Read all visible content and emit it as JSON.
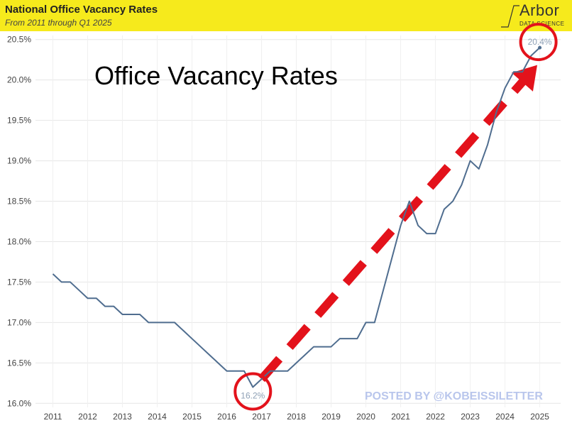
{
  "header": {
    "title": "National Office Vacancy Rates",
    "subtitle": "From 2011 through Q1 2025"
  },
  "logo": {
    "brand": "Arbor",
    "tagline": "DATA SCIENCE"
  },
  "overlay_title": "Office Vacancy Rates",
  "watermark": "POSTED BY @KOBEISSILETTER",
  "colors": {
    "header_bg": "#f6ea1c",
    "line": "#4f6d8f",
    "highlight": "#e3121b",
    "watermark": "#b9c6ec"
  },
  "chart_data": {
    "type": "line",
    "title": "National Office Vacancy Rates",
    "subtitle": "From 2011 through Q1 2025",
    "xlabel": "",
    "ylabel": "",
    "xlim": [
      2010.5,
      2025.6
    ],
    "ylim": [
      15.95,
      20.55
    ],
    "y_ticks": [
      16.0,
      16.5,
      17.0,
      17.5,
      18.0,
      18.5,
      19.0,
      19.5,
      20.0,
      20.5
    ],
    "y_tick_labels": [
      "16.0%",
      "16.5%",
      "17.0%",
      "17.5%",
      "18.0%",
      "18.5%",
      "19.0%",
      "19.5%",
      "20.0%",
      "20.5%"
    ],
    "x_ticks": [
      2011,
      2012,
      2013,
      2014,
      2015,
      2016,
      2017,
      2018,
      2019,
      2020,
      2021,
      2022,
      2023,
      2024,
      2025
    ],
    "x_tick_labels": [
      "2011",
      "2012",
      "2013",
      "2014",
      "2015",
      "2016",
      "2017",
      "2018",
      "2019",
      "2020",
      "2021",
      "2022",
      "2023",
      "2024",
      "2025"
    ],
    "grid": true,
    "x": [
      2011.0,
      2011.25,
      2011.5,
      2011.75,
      2012.0,
      2012.25,
      2012.5,
      2012.75,
      2013.0,
      2013.25,
      2013.5,
      2013.75,
      2014.0,
      2014.25,
      2014.5,
      2014.75,
      2015.0,
      2015.25,
      2015.5,
      2015.75,
      2016.0,
      2016.25,
      2016.5,
      2016.75,
      2017.0,
      2017.25,
      2017.5,
      2017.75,
      2018.0,
      2018.25,
      2018.5,
      2018.75,
      2019.0,
      2019.25,
      2019.5,
      2019.75,
      2020.0,
      2020.25,
      2020.5,
      2020.75,
      2021.0,
      2021.25,
      2021.5,
      2021.75,
      2022.0,
      2022.25,
      2022.5,
      2022.75,
      2023.0,
      2023.25,
      2023.5,
      2023.75,
      2024.0,
      2024.25,
      2024.5,
      2024.75,
      2025.0
    ],
    "values": [
      17.6,
      17.5,
      17.5,
      17.4,
      17.3,
      17.3,
      17.2,
      17.2,
      17.1,
      17.1,
      17.1,
      17.0,
      17.0,
      17.0,
      17.0,
      16.9,
      16.8,
      16.7,
      16.6,
      16.5,
      16.4,
      16.4,
      16.4,
      16.2,
      16.3,
      16.4,
      16.4,
      16.4,
      16.5,
      16.6,
      16.7,
      16.7,
      16.7,
      16.8,
      16.8,
      16.8,
      17.0,
      17.0,
      17.4,
      17.8,
      18.2,
      18.5,
      18.2,
      18.1,
      18.1,
      18.4,
      18.5,
      18.7,
      19.0,
      18.9,
      19.2,
      19.6,
      19.9,
      20.1,
      20.1,
      20.3,
      20.4
    ],
    "annotations": [
      {
        "x": 2016.75,
        "y": 16.2,
        "label": "16.2%"
      },
      {
        "x": 2025.0,
        "y": 20.4,
        "label": "20.4%"
      }
    ]
  }
}
